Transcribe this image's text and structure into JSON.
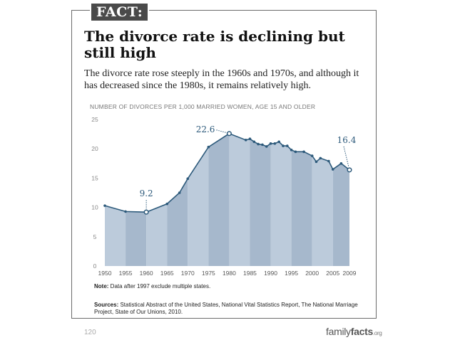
{
  "badge": "FACT:",
  "headline": "The divorce rate is declining but still high",
  "subtitle": "The divorce rate rose steeply in the 1960s and 1970s, and although it has decreased since the 1980s, it remains relatively high.",
  "note": {
    "label": "Note:",
    "text": " Data after 1997 exclude multiple states."
  },
  "sources": {
    "label": "Sources:",
    "text": " Statistical Abstract of the United States, National Vital Statistics Report, The National Marriage Project, State of Our Unions, 2010."
  },
  "page_number": "120",
  "brand": {
    "part1": "family",
    "part2": "facts",
    "part3": ".org"
  },
  "colors": {
    "area_light": "#bccbdb",
    "area_dark": "#a6b8cc",
    "line": "#2d5a7b",
    "text_blue": "#2d5a7b"
  },
  "chart_data": {
    "type": "area",
    "title": "NUMBER OF DIVORCES PER 1,000 MARRIED WOMEN, AGE 15 AND OLDER",
    "ylim": [
      0,
      25
    ],
    "yticks": [
      0,
      5,
      10,
      15,
      20,
      25
    ],
    "xlim": [
      1950,
      2009
    ],
    "xticks": [
      "1950",
      "1955",
      "1960",
      "1965",
      "1970",
      "1975",
      "1980",
      "1985",
      "1990",
      "1995",
      "2000",
      "2005",
      "2009"
    ],
    "points": [
      {
        "x": 1950,
        "y": 10.3
      },
      {
        "x": 1955,
        "y": 9.3
      },
      {
        "x": 1960,
        "y": 9.2
      },
      {
        "x": 1965,
        "y": 10.6
      },
      {
        "x": 1968,
        "y": 12.5
      },
      {
        "x": 1970,
        "y": 14.9
      },
      {
        "x": 1975,
        "y": 20.3
      },
      {
        "x": 1980,
        "y": 22.6
      },
      {
        "x": 1984,
        "y": 21.5
      },
      {
        "x": 1985,
        "y": 21.7
      },
      {
        "x": 1986,
        "y": 21.2
      },
      {
        "x": 1987,
        "y": 20.8
      },
      {
        "x": 1988,
        "y": 20.7
      },
      {
        "x": 1989,
        "y": 20.4
      },
      {
        "x": 1990,
        "y": 20.9
      },
      {
        "x": 1991,
        "y": 20.9
      },
      {
        "x": 1992,
        "y": 21.2
      },
      {
        "x": 1993,
        "y": 20.5
      },
      {
        "x": 1994,
        "y": 20.5
      },
      {
        "x": 1995,
        "y": 19.8
      },
      {
        "x": 1996,
        "y": 19.5
      },
      {
        "x": 1998,
        "y": 19.5
      },
      {
        "x": 2000,
        "y": 18.8
      },
      {
        "x": 2001,
        "y": 17.8
      },
      {
        "x": 2002,
        "y": 18.4
      },
      {
        "x": 2004,
        "y": 17.9
      },
      {
        "x": 2005,
        "y": 16.5
      },
      {
        "x": 2007,
        "y": 17.5
      },
      {
        "x": 2009,
        "y": 16.4
      }
    ],
    "annotations": [
      {
        "x": 1960,
        "y": 9.2,
        "label": "9.2",
        "position": "above"
      },
      {
        "x": 1980,
        "y": 22.6,
        "label": "22.6",
        "position": "left"
      },
      {
        "x": 2009,
        "y": 16.4,
        "label": "16.4",
        "position": "above"
      }
    ],
    "grid": false,
    "legend": "none"
  }
}
